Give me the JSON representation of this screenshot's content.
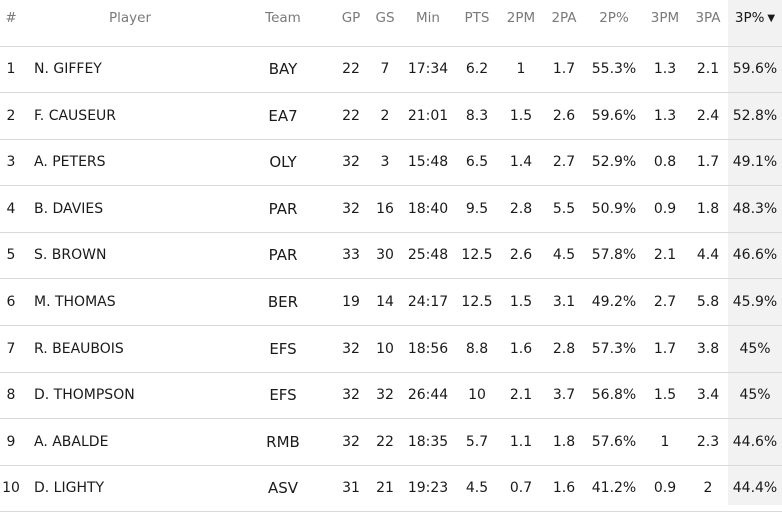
{
  "table": {
    "headers": {
      "rank": "#",
      "player": "Player",
      "team": "Team",
      "gp": "GP",
      "gs": "GS",
      "min": "Min",
      "pts": "PTS",
      "p2m": "2PM",
      "p2a": "2PA",
      "p2pct": "2P%",
      "p3m": "3PM",
      "p3a": "3PA",
      "p3pct": "3P%",
      "sort_icon": "▼"
    },
    "rows": [
      {
        "rank": "1",
        "player": "N. GIFFEY",
        "team": "BAY",
        "gp": "22",
        "gs": "7",
        "min": "17:34",
        "pts": "6.2",
        "p2m": "1",
        "p2a": "1.7",
        "p2pct": "55.3%",
        "p3m": "1.3",
        "p3a": "2.1",
        "p3pct": "59.6%"
      },
      {
        "rank": "2",
        "player": "F. CAUSEUR",
        "team": "EA7",
        "gp": "22",
        "gs": "2",
        "min": "21:01",
        "pts": "8.3",
        "p2m": "1.5",
        "p2a": "2.6",
        "p2pct": "59.6%",
        "p3m": "1.3",
        "p3a": "2.4",
        "p3pct": "52.8%"
      },
      {
        "rank": "3",
        "player": "A. PETERS",
        "team": "OLY",
        "gp": "32",
        "gs": "3",
        "min": "15:48",
        "pts": "6.5",
        "p2m": "1.4",
        "p2a": "2.7",
        "p2pct": "52.9%",
        "p3m": "0.8",
        "p3a": "1.7",
        "p3pct": "49.1%"
      },
      {
        "rank": "4",
        "player": "B. DAVIES",
        "team": "PAR",
        "gp": "32",
        "gs": "16",
        "min": "18:40",
        "pts": "9.5",
        "p2m": "2.8",
        "p2a": "5.5",
        "p2pct": "50.9%",
        "p3m": "0.9",
        "p3a": "1.8",
        "p3pct": "48.3%"
      },
      {
        "rank": "5",
        "player": "S. BROWN",
        "team": "PAR",
        "gp": "33",
        "gs": "30",
        "min": "25:48",
        "pts": "12.5",
        "p2m": "2.6",
        "p2a": "4.5",
        "p2pct": "57.8%",
        "p3m": "2.1",
        "p3a": "4.4",
        "p3pct": "46.6%"
      },
      {
        "rank": "6",
        "player": "M. THOMAS",
        "team": "BER",
        "gp": "19",
        "gs": "14",
        "min": "24:17",
        "pts": "12.5",
        "p2m": "1.5",
        "p2a": "3.1",
        "p2pct": "49.2%",
        "p3m": "2.7",
        "p3a": "5.8",
        "p3pct": "45.9%"
      },
      {
        "rank": "7",
        "player": "R. BEAUBOIS",
        "team": "EFS",
        "gp": "32",
        "gs": "10",
        "min": "18:56",
        "pts": "8.8",
        "p2m": "1.6",
        "p2a": "2.8",
        "p2pct": "57.3%",
        "p3m": "1.7",
        "p3a": "3.8",
        "p3pct": "45%"
      },
      {
        "rank": "8",
        "player": "D. THOMPSON",
        "team": "EFS",
        "gp": "32",
        "gs": "32",
        "min": "26:44",
        "pts": "10",
        "p2m": "2.1",
        "p2a": "3.7",
        "p2pct": "56.8%",
        "p3m": "1.5",
        "p3a": "3.4",
        "p3pct": "45%"
      },
      {
        "rank": "9",
        "player": "A. ABALDE",
        "team": "RMB",
        "gp": "32",
        "gs": "22",
        "min": "18:35",
        "pts": "5.7",
        "p2m": "1.1",
        "p2a": "1.8",
        "p2pct": "57.6%",
        "p3m": "1",
        "p3a": "2.3",
        "p3pct": "44.6%"
      },
      {
        "rank": "10",
        "player": "D. LIGHTY",
        "team": "ASV",
        "gp": "31",
        "gs": "21",
        "min": "19:23",
        "pts": "4.5",
        "p2m": "0.7",
        "p2a": "1.6",
        "p2pct": "41.2%",
        "p3m": "0.9",
        "p3a": "2",
        "p3pct": "44.4%"
      }
    ]
  },
  "colors": {
    "sorted_column_bg": "#f2f2f2",
    "row_divider": "#d9d9d9",
    "header_text": "#7a7a7a",
    "body_text": "#1a1a1a"
  }
}
